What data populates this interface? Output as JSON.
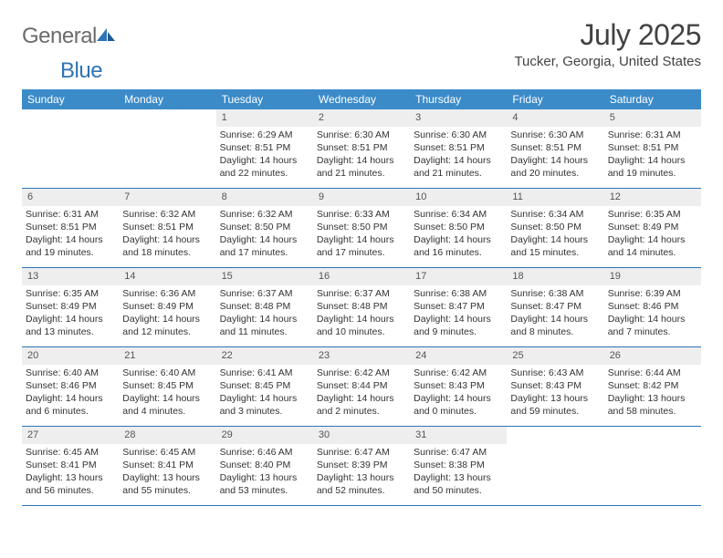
{
  "brand": {
    "part1": "General",
    "part2": "Blue"
  },
  "title": {
    "month_year": "July 2025",
    "location": "Tucker, Georgia, United States"
  },
  "colors": {
    "header_bg": "#3b8bc9",
    "header_text": "#ffffff",
    "daynum_bg": "#eeeeee",
    "rule": "#2f74b5",
    "logo_gray": "#6b6b6b",
    "logo_blue": "#2f74b5",
    "body_text": "#333333"
  },
  "day_headers": [
    "Sunday",
    "Monday",
    "Tuesday",
    "Wednesday",
    "Thursday",
    "Friday",
    "Saturday"
  ],
  "weeks": [
    [
      {
        "blank": true
      },
      {
        "blank": true
      },
      {
        "n": "1",
        "sr": "6:29 AM",
        "ss": "8:51 PM",
        "dl": "14 hours and 22 minutes."
      },
      {
        "n": "2",
        "sr": "6:30 AM",
        "ss": "8:51 PM",
        "dl": "14 hours and 21 minutes."
      },
      {
        "n": "3",
        "sr": "6:30 AM",
        "ss": "8:51 PM",
        "dl": "14 hours and 21 minutes."
      },
      {
        "n": "4",
        "sr": "6:30 AM",
        "ss": "8:51 PM",
        "dl": "14 hours and 20 minutes."
      },
      {
        "n": "5",
        "sr": "6:31 AM",
        "ss": "8:51 PM",
        "dl": "14 hours and 19 minutes."
      }
    ],
    [
      {
        "n": "6",
        "sr": "6:31 AM",
        "ss": "8:51 PM",
        "dl": "14 hours and 19 minutes."
      },
      {
        "n": "7",
        "sr": "6:32 AM",
        "ss": "8:51 PM",
        "dl": "14 hours and 18 minutes."
      },
      {
        "n": "8",
        "sr": "6:32 AM",
        "ss": "8:50 PM",
        "dl": "14 hours and 17 minutes."
      },
      {
        "n": "9",
        "sr": "6:33 AM",
        "ss": "8:50 PM",
        "dl": "14 hours and 17 minutes."
      },
      {
        "n": "10",
        "sr": "6:34 AM",
        "ss": "8:50 PM",
        "dl": "14 hours and 16 minutes."
      },
      {
        "n": "11",
        "sr": "6:34 AM",
        "ss": "8:50 PM",
        "dl": "14 hours and 15 minutes."
      },
      {
        "n": "12",
        "sr": "6:35 AM",
        "ss": "8:49 PM",
        "dl": "14 hours and 14 minutes."
      }
    ],
    [
      {
        "n": "13",
        "sr": "6:35 AM",
        "ss": "8:49 PM",
        "dl": "14 hours and 13 minutes."
      },
      {
        "n": "14",
        "sr": "6:36 AM",
        "ss": "8:49 PM",
        "dl": "14 hours and 12 minutes."
      },
      {
        "n": "15",
        "sr": "6:37 AM",
        "ss": "8:48 PM",
        "dl": "14 hours and 11 minutes."
      },
      {
        "n": "16",
        "sr": "6:37 AM",
        "ss": "8:48 PM",
        "dl": "14 hours and 10 minutes."
      },
      {
        "n": "17",
        "sr": "6:38 AM",
        "ss": "8:47 PM",
        "dl": "14 hours and 9 minutes."
      },
      {
        "n": "18",
        "sr": "6:38 AM",
        "ss": "8:47 PM",
        "dl": "14 hours and 8 minutes."
      },
      {
        "n": "19",
        "sr": "6:39 AM",
        "ss": "8:46 PM",
        "dl": "14 hours and 7 minutes."
      }
    ],
    [
      {
        "n": "20",
        "sr": "6:40 AM",
        "ss": "8:46 PM",
        "dl": "14 hours and 6 minutes."
      },
      {
        "n": "21",
        "sr": "6:40 AM",
        "ss": "8:45 PM",
        "dl": "14 hours and 4 minutes."
      },
      {
        "n": "22",
        "sr": "6:41 AM",
        "ss": "8:45 PM",
        "dl": "14 hours and 3 minutes."
      },
      {
        "n": "23",
        "sr": "6:42 AM",
        "ss": "8:44 PM",
        "dl": "14 hours and 2 minutes."
      },
      {
        "n": "24",
        "sr": "6:42 AM",
        "ss": "8:43 PM",
        "dl": "14 hours and 0 minutes."
      },
      {
        "n": "25",
        "sr": "6:43 AM",
        "ss": "8:43 PM",
        "dl": "13 hours and 59 minutes."
      },
      {
        "n": "26",
        "sr": "6:44 AM",
        "ss": "8:42 PM",
        "dl": "13 hours and 58 minutes."
      }
    ],
    [
      {
        "n": "27",
        "sr": "6:45 AM",
        "ss": "8:41 PM",
        "dl": "13 hours and 56 minutes."
      },
      {
        "n": "28",
        "sr": "6:45 AM",
        "ss": "8:41 PM",
        "dl": "13 hours and 55 minutes."
      },
      {
        "n": "29",
        "sr": "6:46 AM",
        "ss": "8:40 PM",
        "dl": "13 hours and 53 minutes."
      },
      {
        "n": "30",
        "sr": "6:47 AM",
        "ss": "8:39 PM",
        "dl": "13 hours and 52 minutes."
      },
      {
        "n": "31",
        "sr": "6:47 AM",
        "ss": "8:38 PM",
        "dl": "13 hours and 50 minutes."
      },
      {
        "blank": true
      },
      {
        "blank": true
      }
    ]
  ],
  "labels": {
    "sunrise": "Sunrise: ",
    "sunset": "Sunset: ",
    "daylight": "Daylight: "
  }
}
